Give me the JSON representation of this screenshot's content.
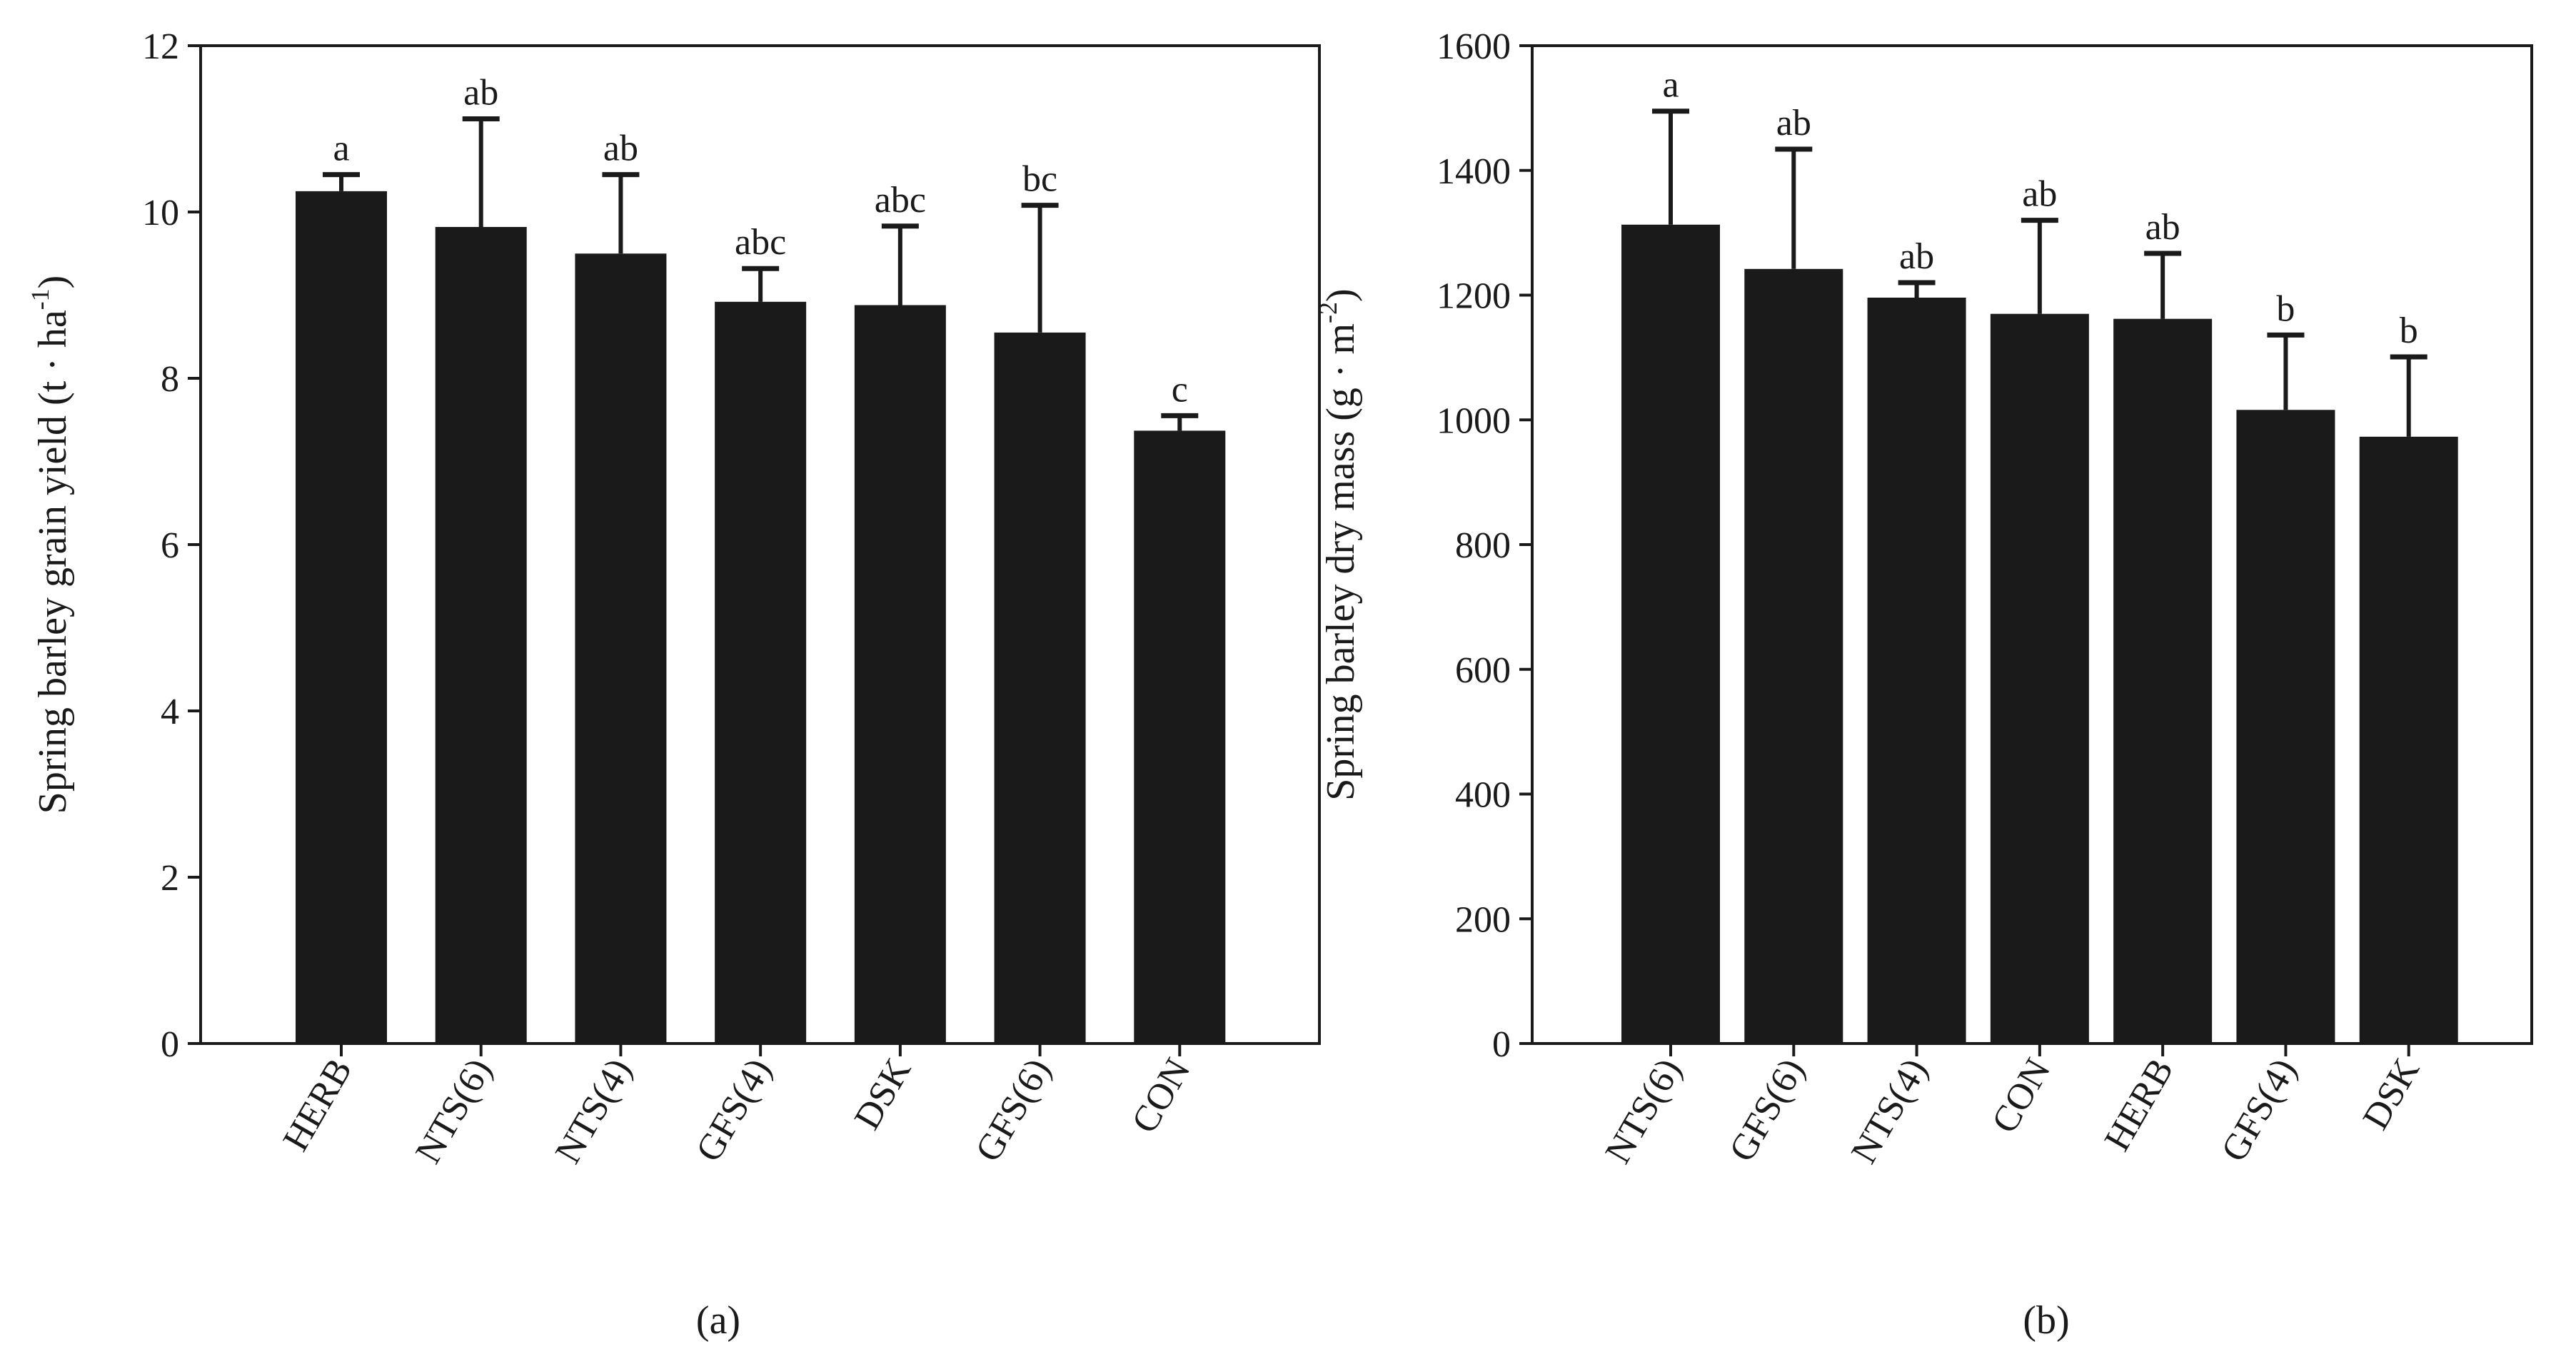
{
  "chart_data": [
    {
      "type": "bar",
      "panel_label": "(a)",
      "title": "",
      "xlabel": "",
      "ylabel": "Spring barley grain yield (t · ha",
      "ylabel_sup": "-1",
      "ylabel_close": ")",
      "ylim": [
        0,
        12
      ],
      "yticks": [
        0,
        2,
        4,
        6,
        8,
        10,
        12
      ],
      "ytick_labels": [
        "0",
        "2",
        "4",
        "6",
        "8",
        "10",
        "12"
      ],
      "categories": [
        "HERB",
        "NTS(6)",
        "NTS(4)",
        "GFS(4)",
        "DSK",
        "GFS(6)",
        "CON"
      ],
      "values": [
        10.25,
        9.82,
        9.5,
        8.92,
        8.88,
        8.55,
        7.37
      ],
      "errors": [
        0.2,
        1.3,
        0.95,
        0.4,
        0.95,
        1.53,
        0.18
      ],
      "significance": [
        "a",
        "ab",
        "ab",
        "abc",
        "abc",
        "bc",
        "c"
      ],
      "bar_color": "#1a1a1a",
      "grid": false,
      "legend": "none"
    },
    {
      "type": "bar",
      "panel_label": "(b)",
      "title": "",
      "xlabel": "",
      "ylabel": "Spring barley dry mass (g · m",
      "ylabel_sup": "-2",
      "ylabel_close": ")",
      "ylim": [
        0,
        1600
      ],
      "yticks": [
        0,
        200,
        400,
        600,
        800,
        1000,
        1200,
        1400,
        1600
      ],
      "ytick_labels": [
        "0",
        "200",
        "400",
        "600",
        "800",
        "1000",
        "1200",
        "1400",
        "1600"
      ],
      "categories": [
        "NTS(6)",
        "GFS(6)",
        "NTS(4)",
        "CON",
        "HERB",
        "GFS(4)",
        "DSK"
      ],
      "values": [
        1313,
        1242,
        1196,
        1170,
        1162,
        1016,
        973
      ],
      "errors": [
        182,
        192,
        24,
        150,
        105,
        120,
        128
      ],
      "significance": [
        "a",
        "ab",
        "ab",
        "ab",
        "ab",
        "b",
        "b"
      ],
      "bar_color": "#1a1a1a",
      "grid": false,
      "legend": "none"
    }
  ]
}
